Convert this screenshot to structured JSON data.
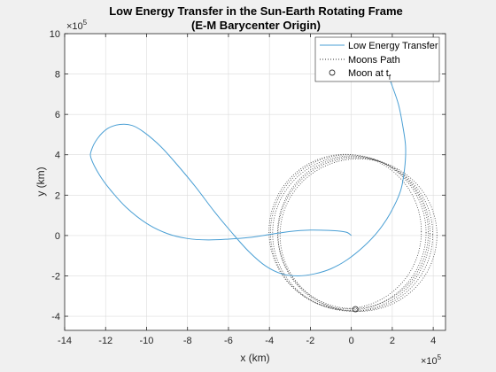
{
  "chart_data": {
    "type": "line",
    "title": "Low Energy Transfer in the Sun-Earth Rotating Frame",
    "subtitle": "(E-M Barycenter Origin)",
    "xlabel": "x (km)",
    "ylabel": "y (km)",
    "x_exponent_label": "×10",
    "x_exponent_power": "5",
    "y_exponent_label": "×10",
    "y_exponent_power": "5",
    "xlim": [
      -1400000,
      460000
    ],
    "ylim": [
      -470000,
      1000000
    ],
    "x_ticks": [
      -1400000,
      -1200000,
      -1000000,
      -800000,
      -600000,
      -400000,
      -200000,
      0,
      200000,
      400000
    ],
    "x_tick_labels": [
      "-14",
      "-12",
      "-10",
      "-8",
      "-6",
      "-4",
      "-2",
      "0",
      "2",
      "4"
    ],
    "y_ticks": [
      -400000,
      -200000,
      0,
      200000,
      400000,
      600000,
      800000,
      1000000
    ],
    "y_tick_labels": [
      "-4",
      "-2",
      "0",
      "2",
      "4",
      "6",
      "8",
      "10"
    ],
    "grid": true,
    "legend_position": "top-right",
    "colors": {
      "transfer": "#4a9fd4",
      "moon_path": "#333333",
      "moon_marker": "#333333",
      "axes": "#262626",
      "grid": "#dcdcdc",
      "background": "#ffffff",
      "figure": "#f0f0f0"
    },
    "series": [
      {
        "name": "Low Energy Transfer",
        "style": "solid",
        "x": [
          0,
          -20000,
          -60000,
          -100000,
          -200000,
          -300000,
          -400000,
          -500000,
          -600000,
          -700000,
          -800000,
          -900000,
          -1000000,
          -1100000,
          -1180000,
          -1230000,
          -1270000,
          -1270000,
          -1240000,
          -1190000,
          -1130000,
          -1070000,
          -1010000,
          -930000,
          -850000,
          -760000,
          -670000,
          -580000,
          -500000,
          -420000,
          -340000,
          -260000,
          -180000,
          -100000,
          -20000,
          60000,
          130000,
          190000,
          240000,
          260000,
          265000,
          250000,
          230000,
          200000,
          170000,
          140000,
          110000,
          80000
        ],
        "y": [
          0,
          15000,
          22000,
          25000,
          27000,
          20000,
          5000,
          -10000,
          -18000,
          -22000,
          -15000,
          10000,
          60000,
          140000,
          230000,
          300000,
          380000,
          420000,
          480000,
          530000,
          550000,
          545000,
          510000,
          440000,
          350000,
          240000,
          120000,
          10000,
          -80000,
          -150000,
          -190000,
          -200000,
          -190000,
          -165000,
          -120000,
          -55000,
          20000,
          110000,
          220000,
          330000,
          440000,
          550000,
          650000,
          740000,
          820000,
          880000,
          940000,
          980000
        ]
      },
      {
        "name": "Moons Path",
        "style": "dotted"
      }
    ],
    "moon_orbit": {
      "center_x": 0,
      "center_y": 10000,
      "radius": 384400,
      "passes": [
        {
          "dx": 0,
          "dy": 0,
          "rx": 384400,
          "ry": 384400
        },
        {
          "dx": -15000,
          "dy": 5000,
          "rx": 380000,
          "ry": 385000
        },
        {
          "dx": 20000,
          "dy": -5000,
          "rx": 378000,
          "ry": 380000
        },
        {
          "dx": -30000,
          "dy": 10000,
          "rx": 372000,
          "ry": 382000
        },
        {
          "dx": 35000,
          "dy": -8000,
          "rx": 383000,
          "ry": 378000
        },
        {
          "dx": 8000,
          "dy": 4000,
          "rx": 368000,
          "ry": 376000
        }
      ]
    },
    "moon_at_tf": {
      "name": "Moon at t",
      "subscript": "f",
      "x": 20000,
      "y": -365000
    }
  }
}
